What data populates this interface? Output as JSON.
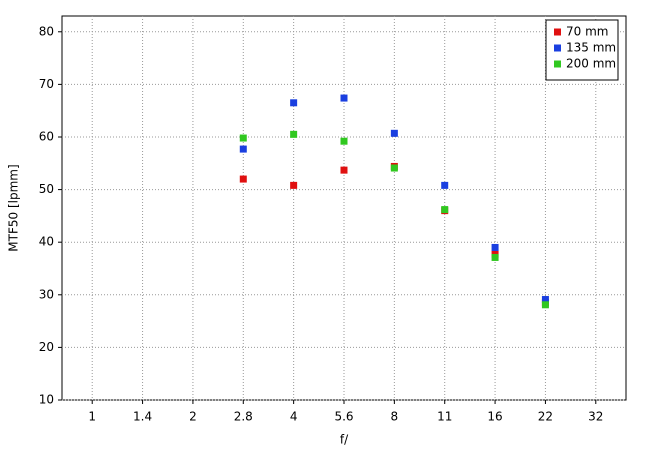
{
  "chart_data": {
    "type": "scatter",
    "x_label": "f/",
    "y_label": "MTF50 [lpmm]",
    "categories": [
      "1",
      "1.4",
      "2",
      "2.8",
      "4",
      "5.6",
      "8",
      "11",
      "16",
      "22",
      "32"
    ],
    "series": [
      {
        "name": "70 mm",
        "color": "#e01010",
        "values": [
          null,
          null,
          null,
          52.0,
          50.8,
          53.7,
          54.4,
          46.0,
          37.7,
          28.5,
          null
        ]
      },
      {
        "name": "135 mm",
        "color": "#1a3fe0",
        "values": [
          null,
          null,
          null,
          57.7,
          66.5,
          67.4,
          60.7,
          50.8,
          39.0,
          29.1,
          null
        ]
      },
      {
        "name": "200 mm",
        "color": "#30c820",
        "values": [
          null,
          null,
          null,
          59.8,
          60.5,
          59.2,
          54.1,
          46.2,
          37.1,
          28.1,
          null
        ]
      }
    ],
    "ylim": [
      10,
      83
    ],
    "yticks": [
      10,
      20,
      30,
      40,
      50,
      60,
      70,
      80
    ],
    "grid": true,
    "legend": "top-right"
  }
}
